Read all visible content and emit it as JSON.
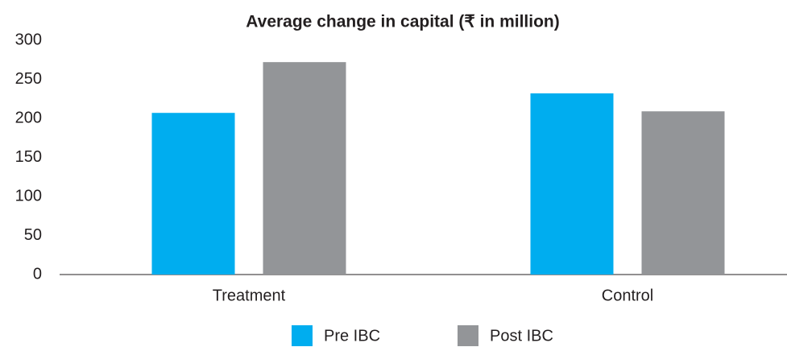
{
  "chart_data": {
    "type": "bar",
    "title": "Average change in capital (₹ in million)",
    "categories": [
      "Treatment",
      "Control"
    ],
    "series": [
      {
        "name": "Pre IBC",
        "color": "#00adef",
        "values": [
          207,
          232
        ]
      },
      {
        "name": "Post IBC",
        "color": "#939598",
        "values": [
          272,
          209
        ]
      }
    ],
    "ylim": [
      0,
      300
    ],
    "yticks": [
      0,
      50,
      100,
      150,
      200,
      250,
      300
    ],
    "grid": false,
    "legend": "bottom"
  }
}
